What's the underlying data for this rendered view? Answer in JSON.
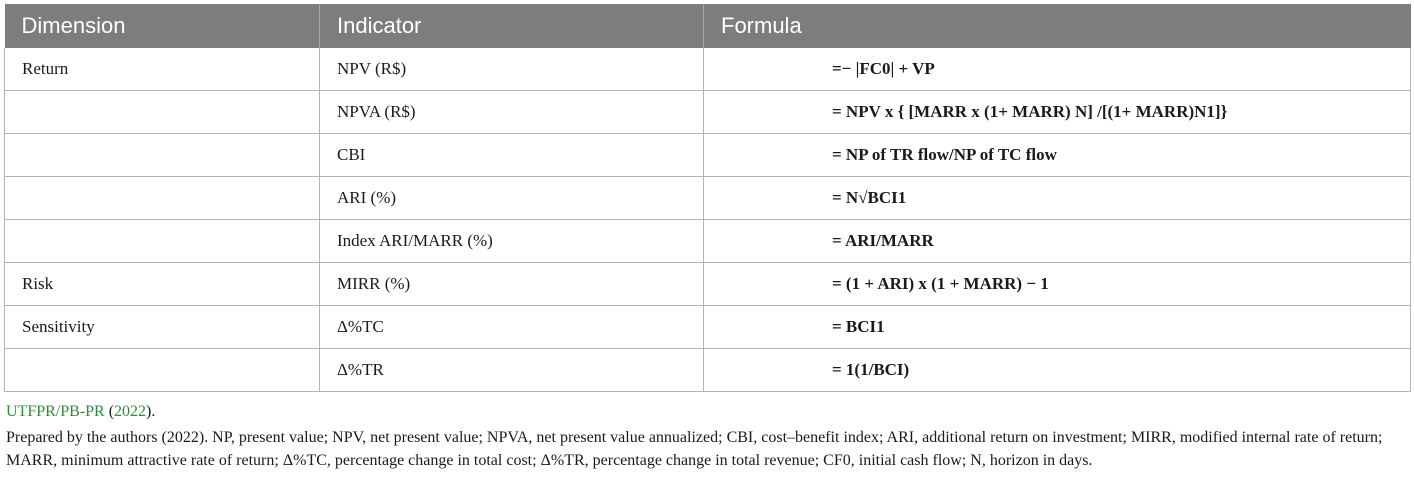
{
  "table": {
    "headers": [
      "Dimension",
      "Indicator",
      "Formula"
    ],
    "rows": [
      {
        "dimension": "Return",
        "indicator": "NPV (R$)",
        "formula": "=− |FC0| + VP"
      },
      {
        "dimension": "",
        "indicator": "NPVA (R$)",
        "formula": "= NPV x { [MARR x  (1+ MARR) N] /[(1+ MARR)N1]}"
      },
      {
        "dimension": "",
        "indicator": "CBI",
        "formula": "= NP of TR flow/NP of TC flow"
      },
      {
        "dimension": "",
        "indicator": "ARI (%)",
        "formula": "= N√BCI1"
      },
      {
        "dimension": "",
        "indicator": "Index ARI/MARR (%)",
        "formula": "= ARI/MARR"
      },
      {
        "dimension": "Risk",
        "indicator": "MIRR (%)",
        "formula": "=  (1 + ARI) x (1 + MARR) − 1"
      },
      {
        "dimension": "Sensitivity",
        "indicator": "Δ%TC",
        "formula": "= BCI1"
      },
      {
        "dimension": "",
        "indicator": "Δ%TR",
        "formula": "= 1(1/BCI)"
      }
    ]
  },
  "source": {
    "link": "UTFPR/PB-PR",
    "year_link": "2022",
    "open": " (",
    "close": ")."
  },
  "note": "Prepared by the authors (2022). NP, present value; NPV, net present value; NPVA, net present value annualized; CBI, cost–benefit index; ARI, additional return on investment; MIRR, modified internal rate of return; MARR, minimum attractive rate of return; Δ%TC, percentage change in total cost; Δ%TR, percentage change in total revenue; CF0, initial cash flow; N, horizon in days."
}
